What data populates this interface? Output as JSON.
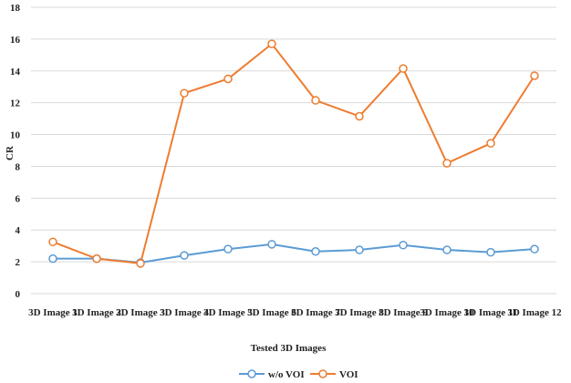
{
  "chart_data": {
    "type": "line",
    "categories": [
      "3D Image 1",
      "3D Image 2",
      "3D Image 3",
      "3D Image 4",
      "3D Image 5",
      "3D Image 6",
      "3D Image 7",
      "3D Image 8",
      "3D Image 9",
      "3D Image 10",
      "3D Image 11",
      "3D Image 12"
    ],
    "series": [
      {
        "name": "w/o VOI",
        "color": "#5b9bd5",
        "values": [
          2.2,
          2.2,
          1.95,
          2.4,
          2.8,
          3.1,
          2.65,
          2.75,
          3.05,
          2.75,
          2.6,
          2.8
        ]
      },
      {
        "name": "VOI",
        "color": "#ed7d31",
        "values": [
          3.25,
          2.2,
          1.9,
          12.6,
          13.5,
          15.7,
          12.15,
          11.15,
          14.15,
          8.2,
          9.45,
          13.7
        ]
      }
    ],
    "xlabel": "Tested 3D Images",
    "ylabel": "CR",
    "ylim": [
      0,
      18
    ],
    "yticks": [
      0,
      2,
      4,
      6,
      8,
      10,
      12,
      14,
      16,
      18
    ],
    "grid": true,
    "legend": "bottom",
    "gridColor": "#d9d9d9"
  }
}
